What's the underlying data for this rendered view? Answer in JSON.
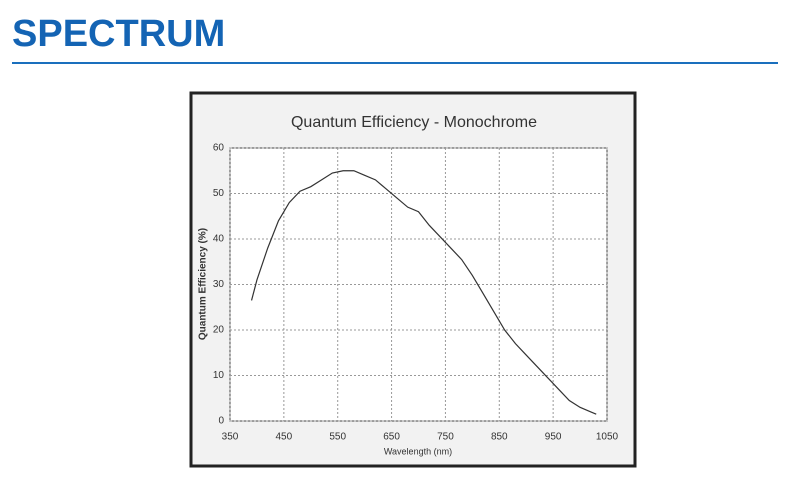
{
  "header": {
    "title": "SPECTRUM"
  },
  "chart_data": {
    "type": "line",
    "title": "Quantum Efficiency - Monochrome",
    "x_label": "Wavelength (nm)",
    "y_label": "Quantum Efficiency (%)",
    "x": [
      390,
      400,
      420,
      440,
      460,
      480,
      500,
      520,
      540,
      560,
      580,
      600,
      620,
      640,
      660,
      680,
      700,
      720,
      740,
      760,
      780,
      800,
      820,
      840,
      860,
      880,
      900,
      920,
      940,
      960,
      980,
      1000,
      1020,
      1030
    ],
    "series": [
      {
        "name": "Monochrome",
        "color": "#333333",
        "values": [
          26.5,
          31,
          38,
          44,
          48,
          50.5,
          51.5,
          53,
          54.5,
          55,
          55,
          54,
          53,
          51,
          49,
          47,
          46,
          43,
          40.5,
          38,
          35.5,
          32,
          28,
          24,
          20,
          17,
          14.5,
          12,
          9.5,
          7,
          4.5,
          3,
          2,
          1.5
        ]
      }
    ],
    "xlim": [
      350,
      1050
    ],
    "xticks": [
      350,
      450,
      550,
      650,
      750,
      850,
      950,
      1050
    ],
    "ylim": [
      0,
      60
    ],
    "yticks": [
      0,
      10,
      20,
      30,
      40,
      50,
      60
    ],
    "grid": true
  }
}
